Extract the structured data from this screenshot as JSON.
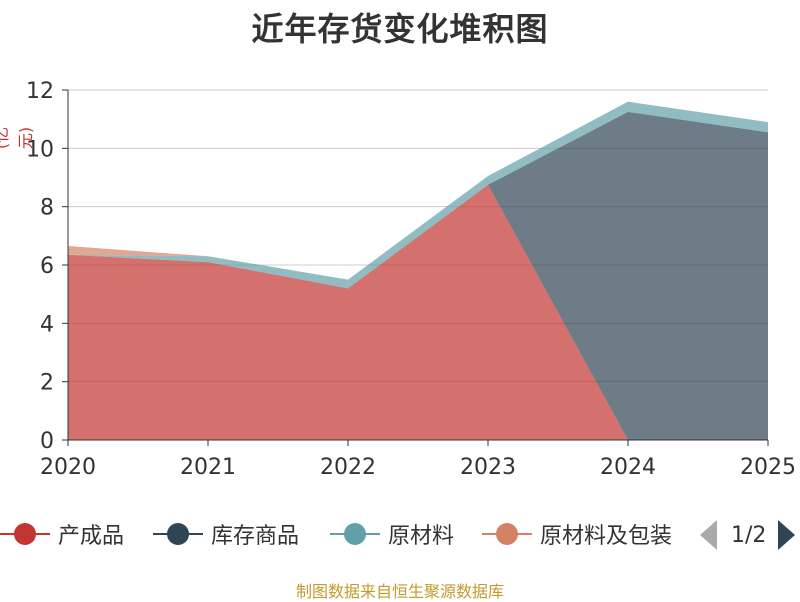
{
  "chart_data": {
    "type": "area",
    "stacked": true,
    "title": "近年存货变化堆积图",
    "ylabel": "(亿元)",
    "categories": [
      "2020",
      "2021",
      "2022",
      "2023",
      "2024",
      "2025"
    ],
    "ylim": [
      0,
      12
    ],
    "yticks": [
      0,
      2,
      4,
      6,
      8,
      10,
      12
    ],
    "grid": true,
    "legend_position": "bottom",
    "series": [
      {
        "name": "产成品",
        "color": "#c23531",
        "values": [
          6.35,
          6.1,
          5.2,
          8.75,
          0,
          0
        ]
      },
      {
        "name": "库存商品",
        "color": "#2f4554",
        "values": [
          0,
          0,
          0,
          0,
          11.25,
          10.55
        ]
      },
      {
        "name": "原材料",
        "color": "#61a0a8",
        "values": [
          0,
          0.2,
          0.3,
          0.3,
          0.35,
          0.35
        ]
      },
      {
        "name": "原材料及包装",
        "color": "#d48265",
        "values": [
          0.3,
          0,
          0,
          0,
          0,
          0
        ]
      }
    ]
  },
  "legend": {
    "page": "1/2"
  },
  "footer": "制图数据来自恒生聚源数据库"
}
